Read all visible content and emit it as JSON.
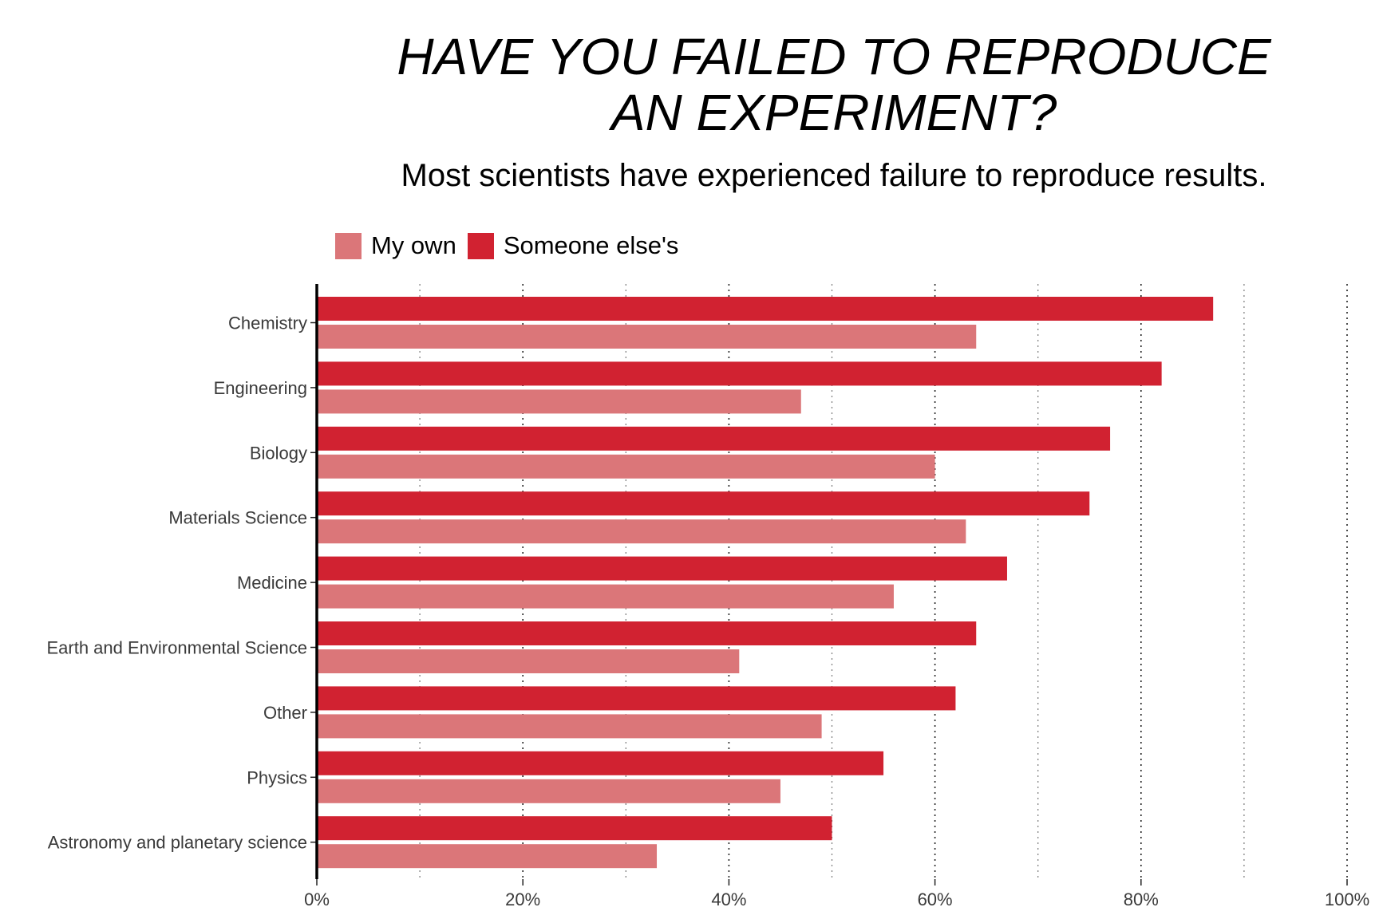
{
  "chart_data": {
    "type": "bar",
    "orientation": "horizontal",
    "title_lines": [
      "HAVE YOU FAILED TO REPRODUCE",
      "AN EXPERIMENT?"
    ],
    "subtitle": "Most scientists have experienced failure to reproduce results.",
    "legend_position": "top-left",
    "xlim": [
      0,
      100
    ],
    "x_ticks": [
      0,
      20,
      40,
      60,
      80,
      100
    ],
    "x_tick_labels": [
      "0%",
      "20%",
      "40%",
      "60%",
      "80%",
      "100%"
    ],
    "grid": true,
    "categories": [
      "Chemistry",
      "Engineering",
      "Biology",
      "Materials Science",
      "Medicine",
      "Earth and Environmental Science",
      "Other",
      "Physics",
      "Astronomy and planetary science"
    ],
    "series": [
      {
        "name": "Someone else's",
        "color": "#d12231",
        "values": [
          87,
          82,
          77,
          75,
          67,
          64,
          62,
          55,
          50
        ]
      },
      {
        "name": "My own",
        "color": "#db7679",
        "values": [
          64,
          47,
          60,
          63,
          56,
          41,
          49,
          45,
          33
        ]
      }
    ]
  },
  "legend": {
    "items": [
      {
        "label": "My own",
        "color": "#db7679"
      },
      {
        "label": "Someone else's",
        "color": "#d12231"
      }
    ]
  }
}
